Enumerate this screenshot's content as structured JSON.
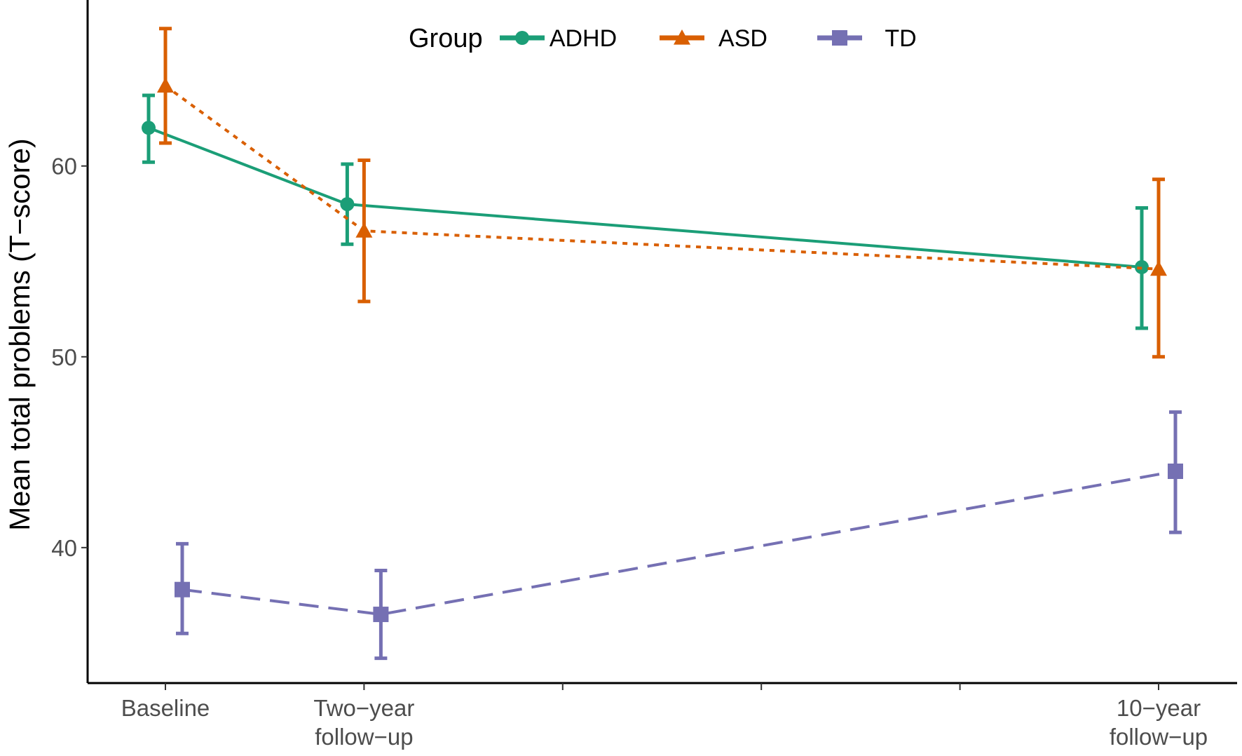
{
  "chart_data": {
    "type": "line",
    "title": "",
    "xlabel": "",
    "ylabel": "Mean total problems (T−score)",
    "ylim": [
      32.9,
      68.7
    ],
    "yticks": [
      40,
      50,
      60
    ],
    "x_positions": [
      0,
      2,
      4,
      6,
      8,
      10
    ],
    "x_tick_labels": [
      [
        "Baseline"
      ],
      [
        "Two−year",
        "follow−up"
      ],
      [],
      [],
      [],
      [
        "10−year",
        "follow−up"
      ]
    ],
    "legend": {
      "title": "Group",
      "position": "top"
    },
    "series": [
      {
        "name": "ADHD",
        "color": "#1b9e77",
        "marker": "circle",
        "linestyle": "solid",
        "x": [
          0,
          2,
          10
        ],
        "values": [
          62.0,
          58.0,
          54.7
        ],
        "error_low": [
          60.2,
          55.9,
          51.5
        ],
        "error_high": [
          63.7,
          60.1,
          57.8
        ]
      },
      {
        "name": "ASD",
        "color": "#d95f02",
        "marker": "triangle",
        "linestyle": "dotted",
        "x": [
          0,
          2,
          10
        ],
        "values": [
          64.2,
          56.6,
          54.6
        ],
        "error_low": [
          61.2,
          52.9,
          50.0
        ],
        "error_high": [
          67.2,
          60.3,
          59.3
        ]
      },
      {
        "name": "TD",
        "color": "#7570b3",
        "marker": "square",
        "linestyle": "dashed",
        "x": [
          0,
          2,
          10
        ],
        "values": [
          37.8,
          36.5,
          44.0
        ],
        "error_low": [
          35.5,
          34.2,
          40.8
        ],
        "error_high": [
          40.2,
          38.8,
          47.1
        ]
      }
    ]
  }
}
